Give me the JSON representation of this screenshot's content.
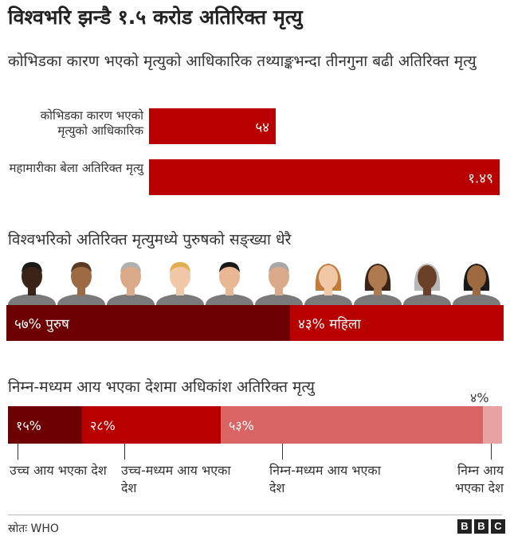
{
  "title": "विश्वभरि झन्डै १.५ करोड अतिरिक्त मृत्यु",
  "section1": {
    "subtitle": "कोभिडका कारण भएको मृत्युको आधिकारिक तथ्याङ्कभन्दा तीनगुना बढी अतिरिक्त मृत्यु"
  },
  "section2": {
    "title": "विश्वभरिको अतिरिक्त मृत्युमध्ये पुरुषको सङ्ख्या धेरै"
  },
  "section3": {
    "title": "निम्न-मध्यम आय भएका देशमा अधिकांश अतिरिक्त मृत्यु"
  },
  "chart_data": [
    {
      "type": "bar",
      "orientation": "horizontal",
      "categories": [
        "कोभिडका कारण भएको मृत्युको आधिकारिक",
        "महामारीका बेला अतिरिक्त मृत्यु"
      ],
      "values": [
        5.4,
        14.9
      ],
      "value_labels": [
        "५४",
        "१.४९"
      ],
      "color": "#b80000"
    },
    {
      "type": "bar",
      "stacked": true,
      "categories": [
        "पुरुष",
        "महिला"
      ],
      "values": [
        57,
        43
      ],
      "value_labels": [
        "५७% पुरुष",
        "४३% महिला"
      ],
      "colors": [
        "#6d0000",
        "#b80000"
      ]
    },
    {
      "type": "bar",
      "stacked": true,
      "categories": [
        "उच्च आय भएका देश",
        "उच्च-मध्यम आय भएका देश",
        "निम्न-मध्यम आय भएका देश",
        "निम्न आय भएका देश"
      ],
      "values": [
        15,
        28,
        53,
        4
      ],
      "value_labels": [
        "१५%",
        "२८%",
        "५३%",
        "४%"
      ],
      "colors": [
        "#6d0000",
        "#b80000",
        "#d96464",
        "#e8a2a2"
      ]
    }
  ],
  "footer": {
    "source": "स्रोतः WHO",
    "logo_letters": [
      "B",
      "B",
      "C"
    ]
  }
}
